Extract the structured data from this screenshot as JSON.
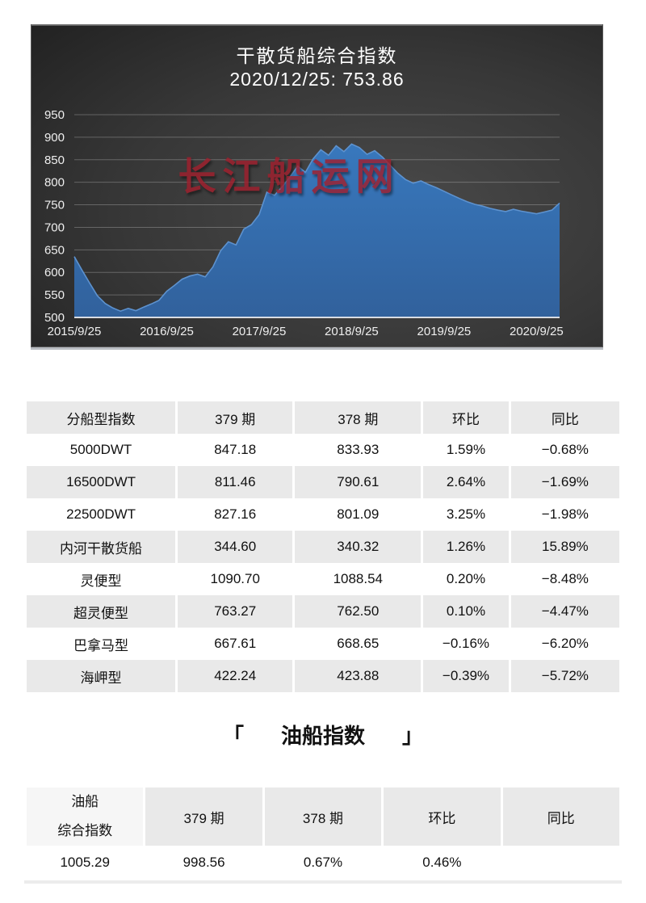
{
  "chart": {
    "title": "干散货船综合指数",
    "subtitle": "2020/12/25: 753.86",
    "watermark": "长江船运网",
    "colors": {
      "panel_bg_inner": "#4a4a4a",
      "panel_bg_outer": "#222222",
      "area_top": "#3878bd",
      "area_bottom": "#31619c",
      "area_edge": "#5d92cf",
      "gridline": "rgba(220,220,220,0.30)",
      "baseline": "rgba(232,234,238,0.9)",
      "axis_label": "#efefef",
      "watermark_red": "#a01f2d"
    }
  },
  "chart_data": {
    "type": "area",
    "title": "干散货船综合指数",
    "subtitle": "2020/12/25: 753.86",
    "x_start_month": "2015/9",
    "x_end_month": "2020/12",
    "x_tick_labels": [
      "2015/9/25",
      "2016/9/25",
      "2017/9/25",
      "2018/9/25",
      "2019/9/25",
      "2020/9/25"
    ],
    "y_ticks": [
      500,
      550,
      600,
      650,
      700,
      750,
      800,
      850,
      900,
      950
    ],
    "ylim": [
      500,
      950
    ],
    "grid": "on",
    "legend": "none",
    "values": [
      635,
      605,
      576,
      548,
      531,
      521,
      514,
      520,
      515,
      523,
      530,
      538,
      558,
      571,
      585,
      592,
      596,
      590,
      612,
      648,
      668,
      661,
      696,
      706,
      728,
      778,
      771,
      790,
      812,
      836,
      822,
      852,
      872,
      860,
      881,
      868,
      885,
      877,
      862,
      870,
      856,
      838,
      820,
      806,
      798,
      803,
      795,
      788,
      780,
      772,
      764,
      757,
      751,
      747,
      742,
      738,
      735,
      740,
      736,
      733,
      730,
      734,
      738,
      753.86
    ],
    "last_point_label": "753.86"
  },
  "table1": {
    "headers": [
      "分船型指数",
      "379 期",
      "378 期",
      "环比",
      "同比"
    ],
    "rows": [
      [
        "5000DWT",
        "847.18",
        "833.93",
        "1.59%",
        "−0.68%"
      ],
      [
        "16500DWT",
        "811.46",
        "790.61",
        "2.64%",
        "−1.69%"
      ],
      [
        "22500DWT",
        "827.16",
        "801.09",
        "3.25%",
        "−1.98%"
      ],
      [
        "内河干散货船",
        "344.60",
        "340.32",
        "1.26%",
        "15.89%"
      ],
      [
        "灵便型",
        "1090.70",
        "1088.54",
        "0.20%",
        "−8.48%"
      ],
      [
        "超灵便型",
        "763.27",
        "762.50",
        "0.10%",
        "−4.47%"
      ],
      [
        "巴拿马型",
        "667.61",
        "668.65",
        "−0.16%",
        "−6.20%"
      ],
      [
        "海岬型",
        "422.24",
        "423.88",
        "−0.39%",
        "−5.72%"
      ]
    ]
  },
  "oil_section": {
    "bracket_left": "「",
    "title": "油船指数",
    "bracket_right": "」"
  },
  "table2": {
    "row_label_line1": "油船",
    "row_label_line2": "综合指数",
    "headers": [
      "379 期",
      "378 期",
      "环比",
      "同比"
    ],
    "values": [
      "1005.29",
      "998.56",
      "0.67%",
      "0.46%"
    ]
  }
}
